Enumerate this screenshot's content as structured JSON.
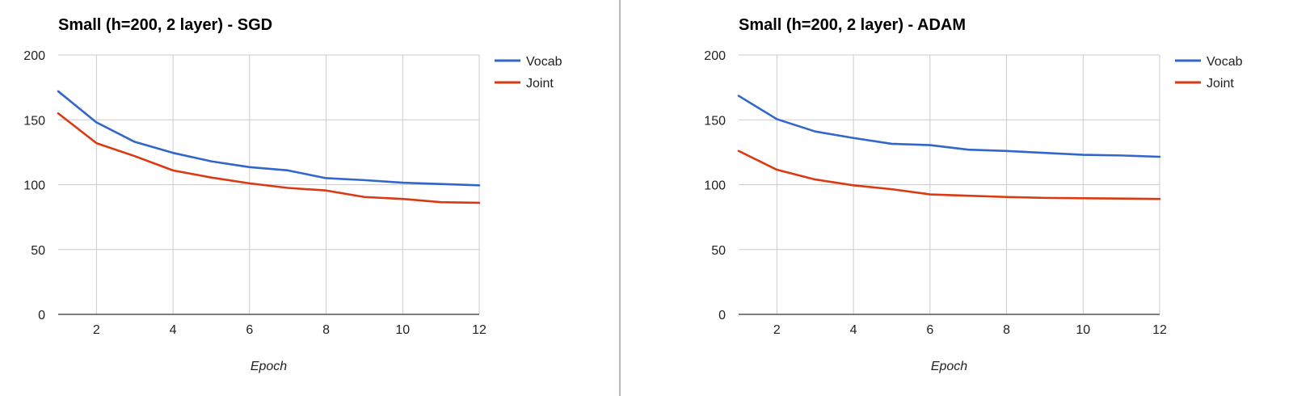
{
  "chart_data": [
    {
      "type": "line",
      "title": "Small (h=200, 2 layer) - SGD",
      "xlabel": "Epoch",
      "ylabel": "",
      "x": [
        1,
        2,
        3,
        4,
        5,
        6,
        7,
        8,
        9,
        10,
        11,
        12
      ],
      "xticks": [
        2,
        4,
        6,
        8,
        10,
        12
      ],
      "yticks": [
        0,
        50,
        100,
        150,
        200
      ],
      "xlim": [
        1,
        12
      ],
      "ylim": [
        0,
        200
      ],
      "grid": true,
      "legend_position": "right",
      "series": [
        {
          "name": "Vocab",
          "color": "#3366cc",
          "values": [
            172,
            148,
            133,
            124.5,
            118,
            113.5,
            111,
            105,
            103.5,
            101.5,
            100.5,
            99.5
          ]
        },
        {
          "name": "Joint",
          "color": "#dc3912",
          "values": [
            155,
            132,
            122,
            111,
            105.5,
            101,
            97.5,
            95.5,
            90.5,
            89,
            86.5,
            86
          ]
        }
      ]
    },
    {
      "type": "line",
      "title": "Small (h=200, 2 layer) - ADAM",
      "xlabel": "Epoch",
      "ylabel": "",
      "x": [
        1,
        2,
        3,
        4,
        5,
        6,
        7,
        8,
        9,
        10,
        11,
        12
      ],
      "xticks": [
        2,
        4,
        6,
        8,
        10,
        12
      ],
      "yticks": [
        0,
        50,
        100,
        150,
        200
      ],
      "xlim": [
        1,
        12
      ],
      "ylim": [
        0,
        200
      ],
      "grid": true,
      "legend_position": "right",
      "series": [
        {
          "name": "Vocab",
          "color": "#3366cc",
          "values": [
            168.5,
            150.5,
            141,
            136,
            131.5,
            130.5,
            127,
            126,
            124.5,
            123,
            122.5,
            121.5
          ]
        },
        {
          "name": "Joint",
          "color": "#dc3912",
          "values": [
            126,
            111.5,
            104,
            99.5,
            96.5,
            92.5,
            91.5,
            90.5,
            89.8,
            89.5,
            89.3,
            89
          ]
        }
      ]
    }
  ]
}
